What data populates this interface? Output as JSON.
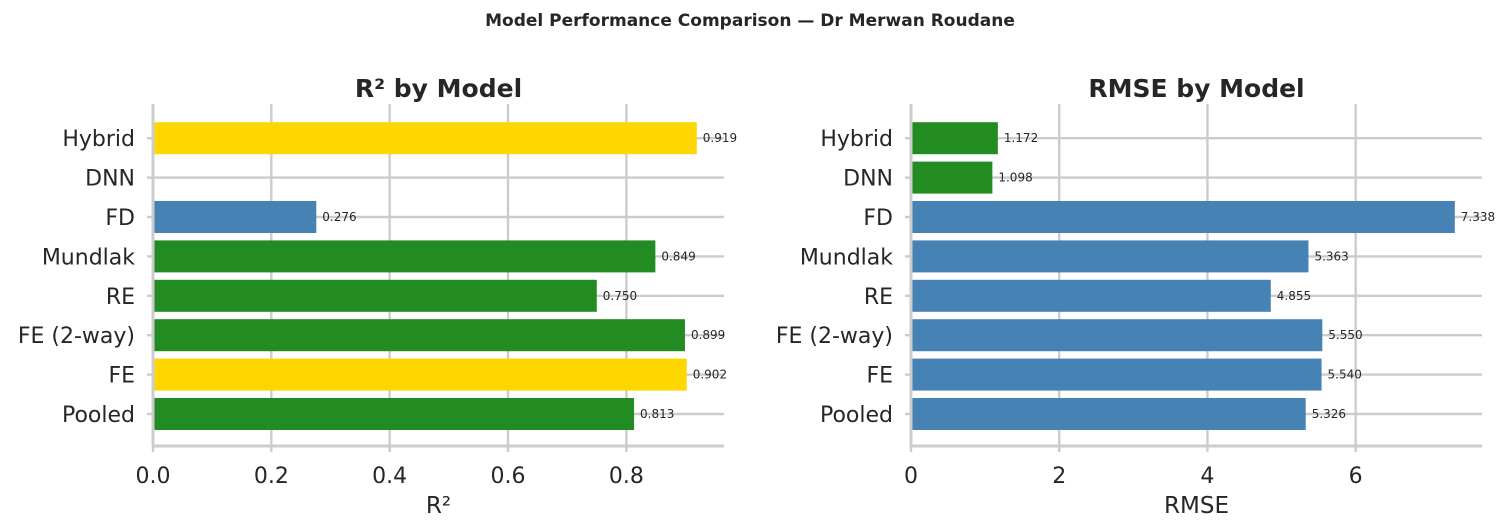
{
  "title": "Model Performance Comparison — Dr Merwan Roudane",
  "colors": {
    "best": "#FFD700",
    "good": "#228B22",
    "other": "#4682B4"
  },
  "chart_data": [
    {
      "type": "bar",
      "orientation": "horizontal",
      "title": "R² by Model",
      "xlabel": "R²",
      "ylabel": "",
      "xlim": [
        0,
        0.965
      ],
      "xticks": [
        0.0,
        0.2,
        0.4,
        0.6,
        0.8
      ],
      "tick_labels": [
        "0.0",
        "0.2",
        "0.4",
        "0.6",
        "0.8"
      ],
      "grid": true,
      "categories": [
        "Pooled",
        "FE",
        "FE (2-way)",
        "RE",
        "Mundlak",
        "FD",
        "DNN",
        "Hybrid"
      ],
      "values": [
        0.813,
        0.902,
        0.899,
        0.75,
        0.849,
        0.276,
        null,
        0.919
      ],
      "value_labels": [
        "0.813",
        "0.902",
        "0.899",
        "0.750",
        "0.849",
        "0.276",
        "",
        "0.919"
      ],
      "bar_colors": [
        "good",
        "best",
        "good",
        "good",
        "good",
        "other",
        "",
        "best"
      ]
    },
    {
      "type": "bar",
      "orientation": "horizontal",
      "title": "RMSE by Model",
      "xlabel": "RMSE",
      "ylabel": "",
      "xlim": [
        0,
        7.705
      ],
      "xticks": [
        0,
        2,
        4,
        6
      ],
      "tick_labels": [
        "0",
        "2",
        "4",
        "6"
      ],
      "grid": true,
      "categories": [
        "Pooled",
        "FE",
        "FE (2-way)",
        "RE",
        "Mundlak",
        "FD",
        "DNN",
        "Hybrid"
      ],
      "values": [
        5.326,
        5.54,
        5.55,
        4.855,
        5.363,
        7.338,
        1.098,
        1.172
      ],
      "value_labels": [
        "5.326",
        "5.540",
        "5.550",
        "4.855",
        "5.363",
        "7.338",
        "1.098",
        "1.172"
      ],
      "bar_colors": [
        "other",
        "other",
        "other",
        "other",
        "other",
        "other",
        "good",
        "good"
      ]
    }
  ]
}
